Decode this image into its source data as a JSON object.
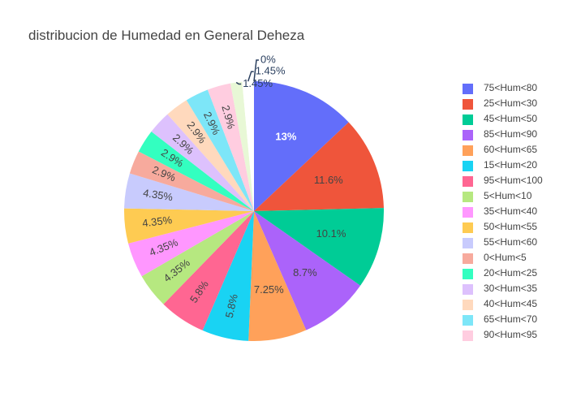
{
  "chart_data": {
    "type": "pie",
    "title": "distribucion de Humedad en General Deheza",
    "legend_position": "right",
    "slices": [
      {
        "label": "75<Hum<80",
        "value": 13,
        "text": "13%",
        "color": "#636efa"
      },
      {
        "label": "25<Hum<30",
        "value": 11.6,
        "text": "11.6%",
        "color": "#EF553B"
      },
      {
        "label": "45<Hum<50",
        "value": 10.1,
        "text": "10.1%",
        "color": "#00cc96"
      },
      {
        "label": "85<Hum<90",
        "value": 8.7,
        "text": "8.7%",
        "color": "#ab63fa"
      },
      {
        "label": "60<Hum<65",
        "value": 7.25,
        "text": "7.25%",
        "color": "#FFA15A"
      },
      {
        "label": "15<Hum<20",
        "value": 5.8,
        "text": "5.8%",
        "color": "#19d3f3"
      },
      {
        "label": "95<Hum<100",
        "value": 5.8,
        "text": "5.8%",
        "color": "#FF6692"
      },
      {
        "label": "5<Hum<10",
        "value": 4.35,
        "text": "4.35%",
        "color": "#B6E880"
      },
      {
        "label": "35<Hum<40",
        "value": 4.35,
        "text": "4.35%",
        "color": "#FF97FF"
      },
      {
        "label": "50<Hum<55",
        "value": 4.35,
        "text": "4.35%",
        "color": "#FECB52"
      },
      {
        "label": "55<Hum<60",
        "value": 4.35,
        "text": "4.35%",
        "color": "#c8cbfd"
      },
      {
        "label": "0<Hum<5",
        "value": 2.9,
        "text": "2.9%",
        "color": "#f7aa9d"
      },
      {
        "label": "20<Hum<25",
        "value": 2.9,
        "text": "2.9%",
        "color": "#33ffc0"
      },
      {
        "label": "30<Hum<35",
        "value": 2.9,
        "text": "2.9%",
        "color": "#ddc1fd"
      },
      {
        "label": "40<Hum<45",
        "value": 2.9,
        "text": "2.9%",
        "color": "#ffd9bd"
      },
      {
        "label": "65<Hum<70",
        "value": 2.9,
        "text": "2.9%",
        "color": "#7de6f8"
      },
      {
        "label": "90<Hum<95",
        "value": 2.9,
        "text": "2.9%",
        "color": "#ffcde0"
      },
      {
        "label": "",
        "value": 1.45,
        "text": "1.45%",
        "color": "#e8f8d6"
      },
      {
        "label": "",
        "value": 1.45,
        "text": "1.45%",
        "color": "#ffffff"
      },
      {
        "label": "",
        "value": 0,
        "text": "0%",
        "color": "#636efa"
      }
    ]
  }
}
